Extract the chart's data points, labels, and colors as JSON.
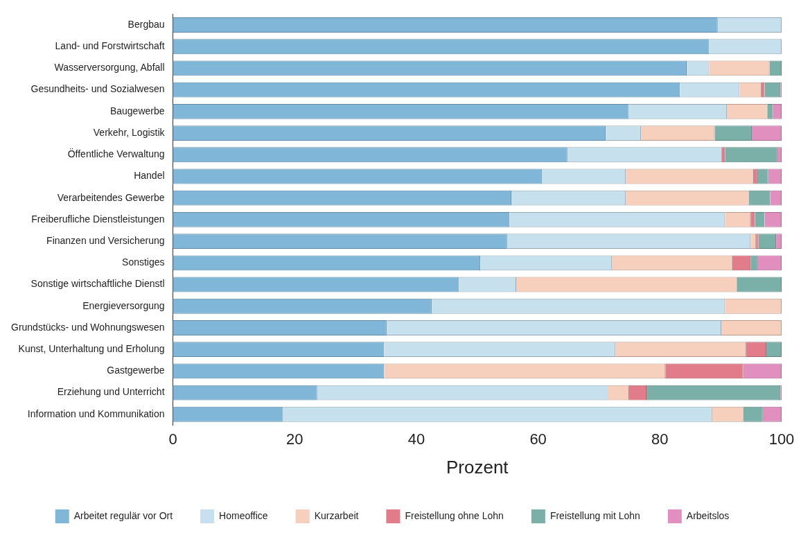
{
  "chart_data": {
    "type": "bar",
    "orientation": "horizontal",
    "stacked": true,
    "xlabel": "Prozent",
    "xlim": [
      0,
      100
    ],
    "xticks": [
      0,
      20,
      40,
      60,
      80,
      100
    ],
    "grid": false,
    "legend": "bottom",
    "categories": [
      "Bergbau",
      "Land- und Forstwirtschaft",
      "Wasserversorgung, Abfall",
      "Gesundheits- und Sozialwesen",
      "Baugewerbe",
      "Verkehr, Logistik",
      "Öffentliche Verwaltung",
      "Handel",
      "Verarbeitendes Gewerbe",
      "Freiberufliche Dienstleistungen",
      "Finanzen und Versicherung",
      "Sonstiges",
      "Sonstige wirtschaftliche Dienstl",
      "Energieversorgung",
      "Grundstücks- und Wohnungswesen",
      "Kunst, Unterhaltung und Erholung",
      "Gastgewerbe",
      "Erziehung und Unterricht",
      "Information und Kommunikation"
    ],
    "series": [
      {
        "name": "Arbeitet regulär vor Ort",
        "color": "#80b7d9",
        "values": [
          89.5,
          88.1,
          84.4,
          83.3,
          74.9,
          71.1,
          64.8,
          60.6,
          55.6,
          55.3,
          54.9,
          50.5,
          47.0,
          42.5,
          35.1,
          34.7,
          34.7,
          23.7,
          18.1
        ]
      },
      {
        "name": "Homeoffice",
        "color": "#c6e0ee",
        "values": [
          10.5,
          11.9,
          3.7,
          9.8,
          16.1,
          5.8,
          25.4,
          13.8,
          18.8,
          35.4,
          40.0,
          21.6,
          9.4,
          48.2,
          55.0,
          38.0,
          0,
          47.8,
          70.5
        ]
      },
      {
        "name": "Kurzarbeit",
        "color": "#f7cfbd",
        "values": [
          0,
          0,
          9.9,
          3.6,
          6.7,
          12.1,
          0,
          20.9,
          20.2,
          4.2,
          0.9,
          19.8,
          36.3,
          9.3,
          9.9,
          21.5,
          46.2,
          3.3,
          5.1
        ]
      },
      {
        "name": "Freistellung ohne Lohn",
        "color": "#e37c8a",
        "values": [
          0,
          0,
          0,
          0.5,
          0,
          0,
          0.5,
          0.7,
          0,
          0.7,
          0.4,
          3.0,
          0,
          0,
          0,
          3.3,
          12.8,
          3.0,
          0
        ]
      },
      {
        "name": "Freistellung mit Lohn",
        "color": "#7ab0a8",
        "values": [
          0,
          0,
          2.0,
          2.6,
          0.9,
          6.1,
          8.6,
          1.8,
          3.5,
          1.6,
          2.9,
          1.1,
          7.3,
          0,
          0,
          2.5,
          0,
          22.0,
          3.2
        ]
      },
      {
        "name": "Arbeitslos",
        "color": "#e18fbf",
        "values": [
          0,
          0,
          0,
          0.2,
          1.4,
          4.9,
          0.7,
          2.2,
          1.9,
          2.8,
          0.9,
          4.0,
          0,
          0,
          0,
          0,
          6.3,
          0.2,
          3.1
        ]
      }
    ]
  }
}
